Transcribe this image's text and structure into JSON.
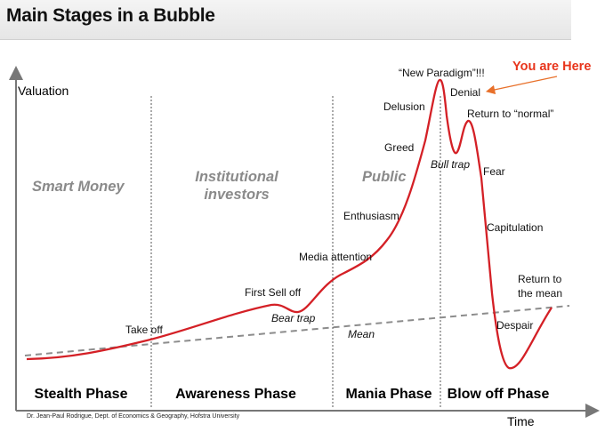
{
  "title": "Main Stages in a Bubble",
  "axes": {
    "y_label": "Valuation",
    "x_label": "Time"
  },
  "groups": {
    "smart_money": "Smart Money",
    "institutional_line1": "Institutional",
    "institutional_line2": "investors",
    "public": "Public"
  },
  "phases": {
    "stealth": "Stealth Phase",
    "awareness": "Awareness Phase",
    "mania": "Mania Phase",
    "blowoff": "Blow off Phase"
  },
  "annotations": {
    "take_off": "Take off",
    "first_sell_off": "First Sell off",
    "bear_trap": "Bear trap",
    "media_attention": "Media attention",
    "enthusiasm": "Enthusiasm",
    "greed": "Greed",
    "delusion": "Delusion",
    "new_paradigm": "“New Paradigm”!!!",
    "denial": "Denial",
    "return_to_normal": "Return to “normal”",
    "bull_trap": "Bull trap",
    "fear": "Fear",
    "capitulation": "Capitulation",
    "return_to_mean_line1": "Return to",
    "return_to_mean_line2": "the mean",
    "despair": "Despair",
    "mean": "Mean"
  },
  "marker": {
    "text": "You are Here",
    "color": "#e8351c"
  },
  "credit": "Dr. Jean-Paul Rodrigue, Dept. of Economics & Geography, Hofstra University",
  "colors": {
    "curve": "#d42026",
    "mean_line": "#8c8c8c",
    "group_text": "#8a8a8a"
  }
}
